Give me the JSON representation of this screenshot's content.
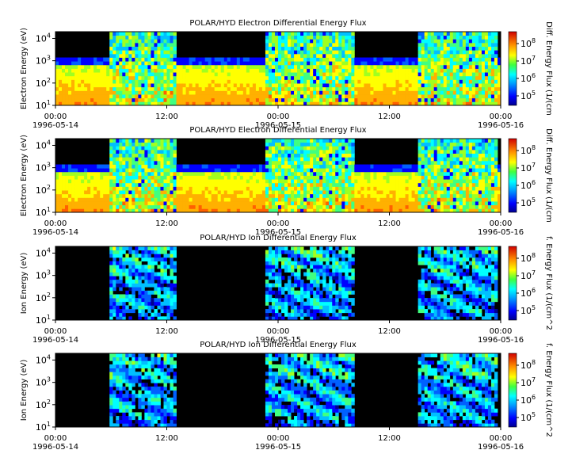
{
  "chart_data": [
    {
      "type": "heatmap",
      "title": "POLAR/HYD  Electron Differential Energy Flux",
      "ylabel": "Electron Energy (eV)",
      "colorbar_label": "Diff. Energy Flux (1/(cm",
      "species": "electron",
      "yscale": "log",
      "ylim": [
        10,
        20000
      ],
      "yticks": [
        {
          "exp": "1"
        },
        {
          "exp": "2"
        },
        {
          "exp": "3"
        },
        {
          "exp": "4"
        }
      ],
      "colorbar_ticks": [
        {
          "exp": "5"
        },
        {
          "exp": "6"
        },
        {
          "exp": "7"
        },
        {
          "exp": "8"
        }
      ],
      "xtick_times": [
        "00:00",
        "12:00",
        "00:00",
        "12:00",
        "00:00"
      ],
      "xtick_dates": [
        "1996-05-14",
        "1996-05-15",
        "1996-05-16"
      ]
    },
    {
      "type": "heatmap",
      "title": "POLAR/HYD  Electron Differential Energy Flux",
      "ylabel": "Electron Energy (eV)",
      "colorbar_label": "Diff. Energy Flux (1/(cm",
      "species": "electron",
      "yscale": "log",
      "ylim": [
        10,
        20000
      ],
      "yticks": [
        {
          "exp": "1"
        },
        {
          "exp": "2"
        },
        {
          "exp": "3"
        },
        {
          "exp": "4"
        }
      ],
      "colorbar_ticks": [
        {
          "exp": "5"
        },
        {
          "exp": "6"
        },
        {
          "exp": "7"
        },
        {
          "exp": "8"
        }
      ],
      "xtick_times": [
        "00:00",
        "12:00",
        "00:00",
        "12:00",
        "00:00"
      ],
      "xtick_dates": [
        "1996-05-14",
        "1996-05-15",
        "1996-05-16"
      ]
    },
    {
      "type": "heatmap",
      "title": "POLAR/HYD  Ion Differential Energy Flux",
      "ylabel": "Ion Energy (eV)",
      "colorbar_label": "f. Energy Flux (1/(cm^2",
      "species": "ion",
      "yscale": "log",
      "ylim": [
        10,
        20000
      ],
      "yticks": [
        {
          "exp": "1"
        },
        {
          "exp": "2"
        },
        {
          "exp": "3"
        },
        {
          "exp": "4"
        }
      ],
      "colorbar_ticks": [
        {
          "exp": "5"
        },
        {
          "exp": "6"
        },
        {
          "exp": "7"
        },
        {
          "exp": "8"
        }
      ],
      "xtick_times": [
        "00:00",
        "12:00",
        "00:00",
        "12:00",
        "00:00"
      ],
      "xtick_dates": [
        "1996-05-14",
        "1996-05-15",
        "1996-05-16"
      ]
    },
    {
      "type": "heatmap",
      "title": "POLAR/HYD  Ion Differential Energy Flux",
      "ylabel": "Ion Energy (eV)",
      "colorbar_label": "f. Energy Flux (1/(cm^2",
      "species": "ion",
      "yscale": "log",
      "ylim": [
        10,
        20000
      ],
      "yticks": [
        {
          "exp": "1"
        },
        {
          "exp": "2"
        },
        {
          "exp": "3"
        },
        {
          "exp": "4"
        }
      ],
      "colorbar_ticks": [
        {
          "exp": "5"
        },
        {
          "exp": "6"
        },
        {
          "exp": "7"
        },
        {
          "exp": "8"
        }
      ],
      "xtick_times": [
        "00:00",
        "12:00",
        "00:00",
        "12:00",
        "00:00"
      ],
      "xtick_dates": [
        "1996-05-14",
        "1996-05-15",
        "1996-05-16"
      ]
    }
  ],
  "shared": {
    "tick_base": "10",
    "midnight_overlap_text": "1996-05-15"
  }
}
